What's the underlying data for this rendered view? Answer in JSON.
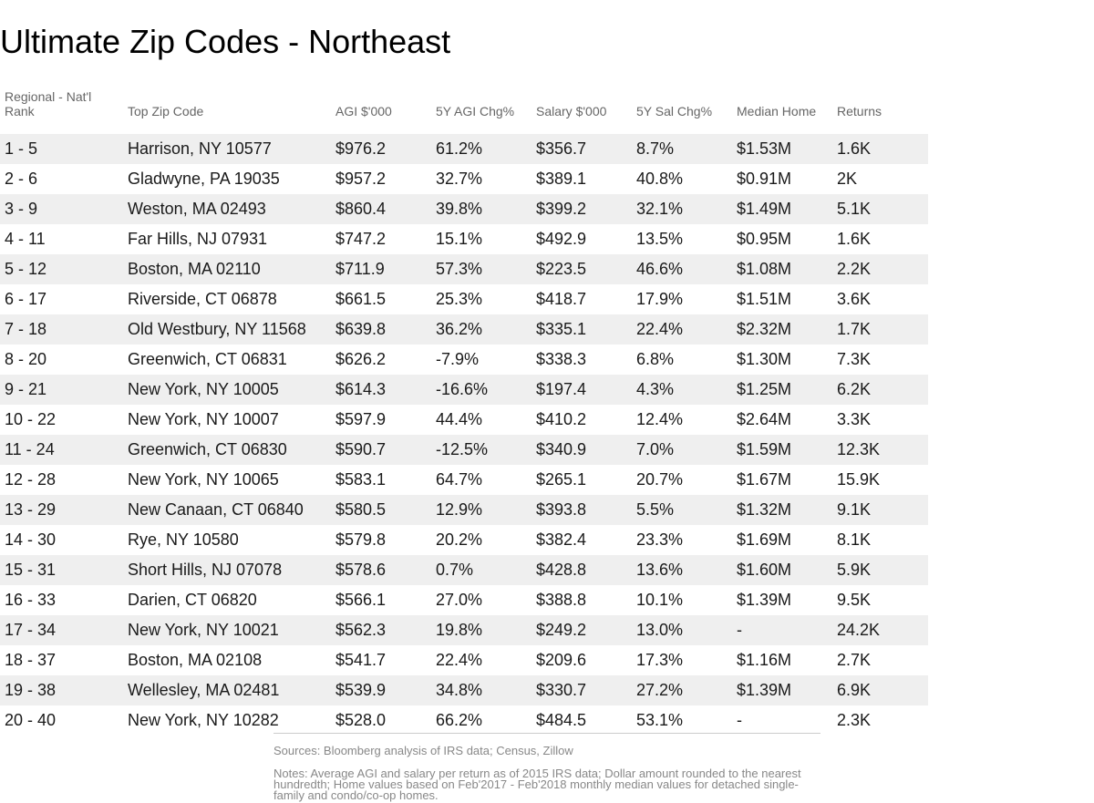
{
  "title": "Ultimate Zip Codes - Northeast",
  "columns": [
    "Regional - Nat'l Rank",
    "Top Zip Code",
    "AGI $'000",
    "5Y AGI Chg%",
    "Salary $'000",
    "5Y Sal Chg%",
    "Median Home",
    "Returns"
  ],
  "rows": [
    [
      "1 - 5",
      "Harrison, NY 10577",
      "$976.2",
      "61.2%",
      "$356.7",
      "8.7%",
      "$1.53M",
      "1.6K"
    ],
    [
      "2 - 6",
      "Gladwyne, PA 19035",
      "$957.2",
      "32.7%",
      "$389.1",
      "40.8%",
      "$0.91M",
      "2K"
    ],
    [
      "3 - 9",
      "Weston, MA 02493",
      "$860.4",
      "39.8%",
      "$399.2",
      "32.1%",
      "$1.49M",
      "5.1K"
    ],
    [
      "4 - 11",
      "Far Hills, NJ 07931",
      "$747.2",
      "15.1%",
      "$492.9",
      "13.5%",
      "$0.95M",
      "1.6K"
    ],
    [
      "5 - 12",
      "Boston, MA 02110",
      "$711.9",
      "57.3%",
      "$223.5",
      "46.6%",
      "$1.08M",
      "2.2K"
    ],
    [
      "6 - 17",
      "Riverside, CT 06878",
      "$661.5",
      "25.3%",
      "$418.7",
      "17.9%",
      "$1.51M",
      "3.6K"
    ],
    [
      "7 - 18",
      "Old Westbury, NY 11568",
      "$639.8",
      "36.2%",
      "$335.1",
      "22.4%",
      "$2.32M",
      "1.7K"
    ],
    [
      "8 - 20",
      "Greenwich, CT 06831",
      "$626.2",
      "-7.9%",
      "$338.3",
      "6.8%",
      "$1.30M",
      "7.3K"
    ],
    [
      "9 - 21",
      "New York, NY 10005",
      "$614.3",
      "-16.6%",
      "$197.4",
      "4.3%",
      "$1.25M",
      "6.2K"
    ],
    [
      "10 - 22",
      "New York, NY 10007",
      "$597.9",
      "44.4%",
      "$410.2",
      "12.4%",
      "$2.64M",
      "3.3K"
    ],
    [
      "11 - 24",
      "Greenwich, CT 06830",
      "$590.7",
      "-12.5%",
      "$340.9",
      "7.0%",
      "$1.59M",
      "12.3K"
    ],
    [
      "12 - 28",
      "New York, NY 10065",
      "$583.1",
      "64.7%",
      "$265.1",
      "20.7%",
      "$1.67M",
      "15.9K"
    ],
    [
      "13 - 29",
      "New Canaan, CT 06840",
      "$580.5",
      "12.9%",
      "$393.8",
      "5.5%",
      "$1.32M",
      "9.1K"
    ],
    [
      "14 - 30",
      "Rye, NY 10580",
      "$579.8",
      "20.2%",
      "$382.4",
      "23.3%",
      "$1.69M",
      "8.1K"
    ],
    [
      "15 - 31",
      "Short Hills, NJ 07078",
      "$578.6",
      "0.7%",
      "$428.8",
      "13.6%",
      "$1.60M",
      "5.9K"
    ],
    [
      "16 - 33",
      "Darien, CT 06820",
      "$566.1",
      "27.0%",
      "$388.8",
      "10.1%",
      "$1.39M",
      "9.5K"
    ],
    [
      "17 - 34",
      "New York, NY 10021",
      "$562.3",
      "19.8%",
      "$249.2",
      "13.0%",
      "-",
      "24.2K"
    ],
    [
      "18 - 37",
      "Boston, MA 02108",
      "$541.7",
      "22.4%",
      "$209.6",
      "17.3%",
      "$1.16M",
      "2.7K"
    ],
    [
      "19 - 38",
      "Wellesley, MA 02481",
      "$539.9",
      "34.8%",
      "$330.7",
      "27.2%",
      "$1.39M",
      "6.9K"
    ],
    [
      "20 - 40",
      "New York, NY 10282",
      "$528.0",
      "66.2%",
      "$484.5",
      "53.1%",
      "-",
      "2.3K"
    ]
  ],
  "sources": "Sources: Bloomberg analysis of IRS data; Census, Zillow",
  "notes": "Notes: Average AGI and salary per return as of 2015 IRS data; Dollar amount rounded to the nearest hundredth; Home values based on Feb'2017 - Feb'2018 monthly median values for detached single-family and condo/co-op homes."
}
